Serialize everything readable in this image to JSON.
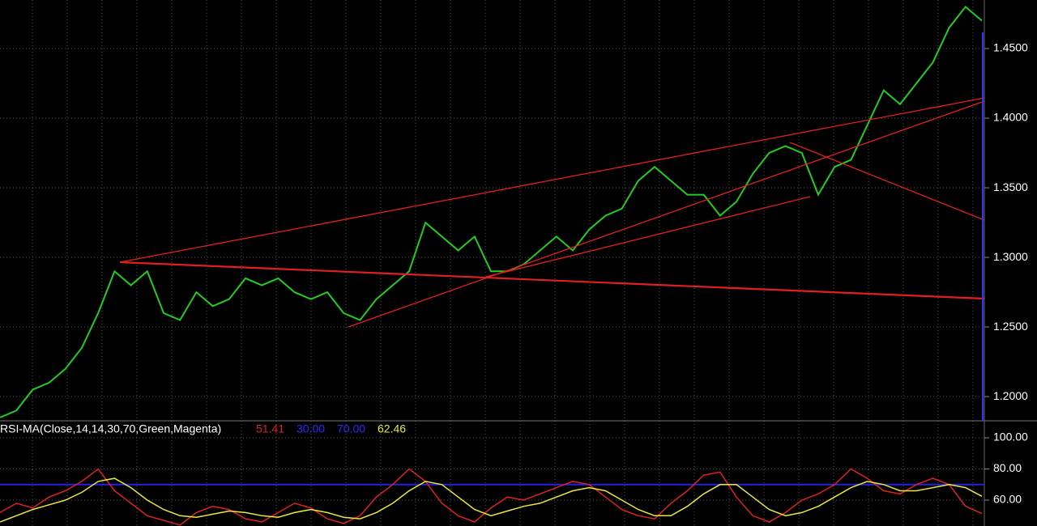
{
  "chart_data": [
    {
      "type": "line",
      "values": [
        1.185,
        1.19,
        1.205,
        1.21,
        1.22,
        1.235,
        1.26,
        1.29,
        1.28,
        1.29,
        1.26,
        1.255,
        1.275,
        1.265,
        1.27,
        1.285,
        1.28,
        1.285,
        1.275,
        1.27,
        1.275,
        1.26,
        1.255,
        1.27,
        1.28,
        1.29,
        1.325,
        1.315,
        1.305,
        1.315,
        1.29,
        1.29,
        1.295,
        1.305,
        1.315,
        1.305,
        1.32,
        1.33,
        1.335,
        1.355,
        1.365,
        1.355,
        1.345,
        1.345,
        1.33,
        1.34,
        1.36,
        1.375,
        1.38,
        1.375,
        1.345,
        1.365,
        1.37,
        1.395,
        1.42,
        1.41,
        1.425,
        1.44,
        1.465,
        1.48,
        1.47
      ],
      "color": "#22cc22",
      "ylim": [
        1.1826,
        1.4849
      ],
      "yticks": [
        {
          "value": 1.2,
          "label": "1.2000"
        },
        {
          "value": 1.25,
          "label": "1.2500"
        },
        {
          "value": 1.3,
          "label": "1.3000"
        },
        {
          "value": 1.35,
          "label": "1.3500"
        },
        {
          "value": 1.4,
          "label": "1.4000"
        },
        {
          "value": 1.45,
          "label": "1.4500"
        }
      ],
      "grid": true
    },
    {
      "type": "line",
      "title": "RSI-MA(Close,14,14,30,70,Green,Magenta)",
      "legend_values": [
        "51.41",
        "30.00",
        "70.00",
        "62.46"
      ],
      "levels": {
        "values": [
          30,
          70
        ],
        "value_labels": [
          "30.00",
          "70.00"
        ],
        "color": "#2222dd"
      },
      "series": [
        {
          "name": "RSI",
          "color": "#dd2222",
          "values": [
            52,
            58,
            55,
            62,
            66,
            72,
            80,
            66,
            58,
            50,
            47,
            44,
            52,
            56,
            54,
            48,
            46,
            52,
            58,
            55,
            48,
            45,
            50,
            62,
            70,
            80,
            72,
            58,
            50,
            46,
            55,
            62,
            60,
            64,
            68,
            72,
            70,
            62,
            54,
            50,
            48,
            58,
            66,
            76,
            78,
            62,
            50,
            46,
            52,
            60,
            64,
            70,
            80,
            74,
            66,
            64,
            70,
            74,
            70,
            56,
            51.41
          ]
        },
        {
          "name": "MA",
          "color": "#e8e840",
          "values": [
            46,
            50,
            54,
            57,
            60,
            65,
            72,
            74,
            68,
            60,
            54,
            50,
            49,
            51,
            53,
            52,
            50,
            49,
            52,
            54,
            52,
            49,
            48,
            52,
            58,
            66,
            72,
            70,
            62,
            54,
            50,
            53,
            56,
            58,
            62,
            66,
            68,
            66,
            60,
            54,
            50,
            50,
            56,
            64,
            70,
            70,
            62,
            54,
            50,
            52,
            56,
            62,
            68,
            72,
            70,
            66,
            66,
            68,
            70,
            68,
            62.46
          ]
        }
      ],
      "ylim": [
        43.4,
        110.9
      ],
      "yticks": [
        {
          "value": 60,
          "label": "60.00"
        },
        {
          "value": 80,
          "label": "80.00"
        },
        {
          "value": 100,
          "label": "100.00"
        }
      ],
      "grid": true
    }
  ]
}
